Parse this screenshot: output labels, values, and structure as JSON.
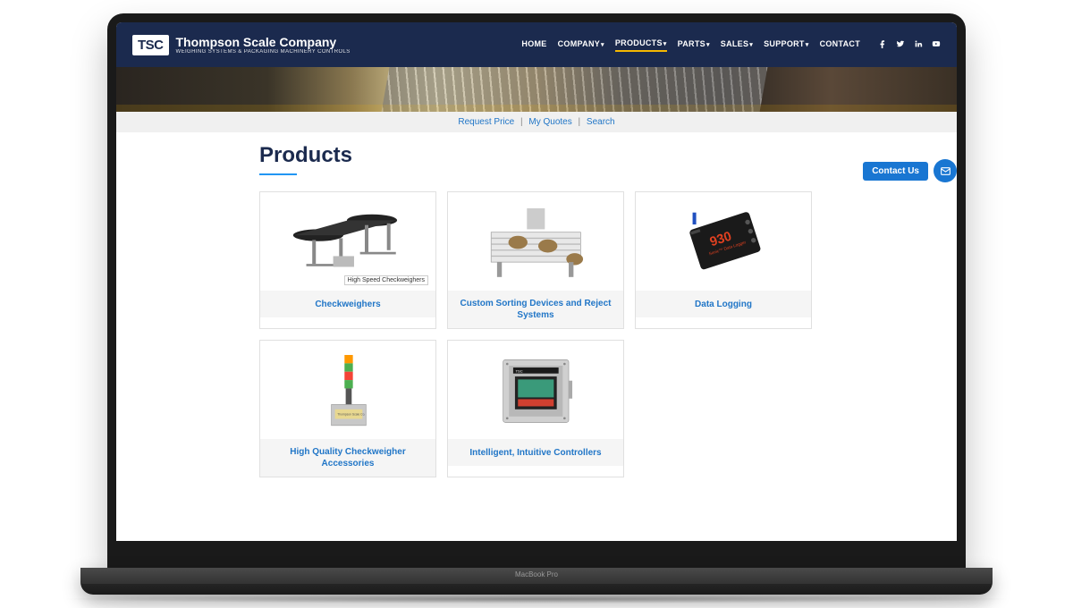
{
  "brand": {
    "logo_abbr": "TSC",
    "name": "Thompson Scale Company",
    "tagline": "WEIGHING SYSTEMS & PACKAGING MACHINERY CONTROLS"
  },
  "nav": {
    "items": [
      {
        "label": "HOME",
        "dropdown": false,
        "active": false
      },
      {
        "label": "COMPANY",
        "dropdown": true,
        "active": false
      },
      {
        "label": "PRODUCTS",
        "dropdown": true,
        "active": true
      },
      {
        "label": "PARTS",
        "dropdown": true,
        "active": false
      },
      {
        "label": "SALES",
        "dropdown": true,
        "active": false
      },
      {
        "label": "SUPPORT",
        "dropdown": true,
        "active": false
      },
      {
        "label": "CONTACT",
        "dropdown": false,
        "active": false
      }
    ],
    "social": [
      "facebook",
      "twitter",
      "linkedin",
      "youtube"
    ]
  },
  "subbar": {
    "links": [
      "Request Price",
      "My Quotes",
      "Search"
    ]
  },
  "page": {
    "title": "Products",
    "contact_label": "Contact Us"
  },
  "products": [
    {
      "title": "Checkweighers",
      "tooltip": "High Speed Checkweighers"
    },
    {
      "title": "Custom Sorting Devices and Reject Systems",
      "tooltip": ""
    },
    {
      "title": "Data Logging",
      "tooltip": ""
    },
    {
      "title": "High Quality Checkweigher Accessories",
      "tooltip": ""
    },
    {
      "title": "Intelligent, Intuitive Controllers",
      "tooltip": ""
    }
  ],
  "device": {
    "label": "MacBook Pro"
  },
  "colors": {
    "header_bg": "#1b2a4e",
    "accent_yellow": "#f5b800",
    "link_blue": "#2176c7",
    "button_blue": "#1976d2",
    "underline_blue": "#2196f3"
  }
}
